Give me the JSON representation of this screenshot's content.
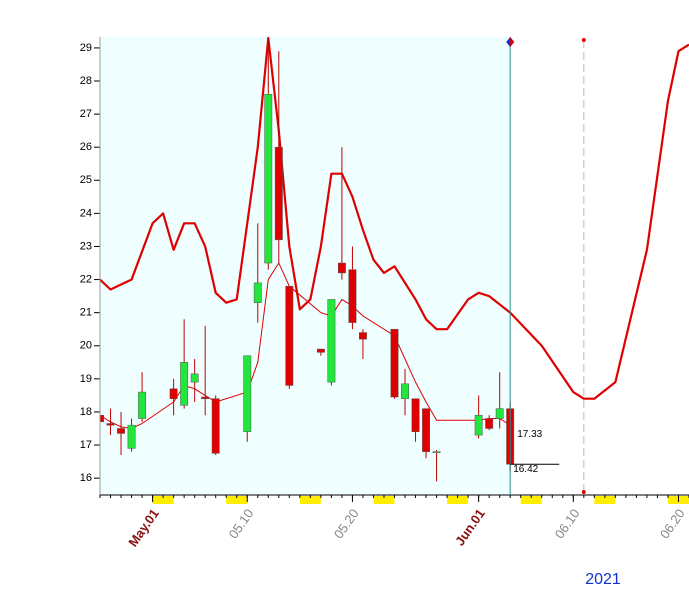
{
  "chart_data": {
    "type": "candlestick",
    "xlim": [
      "2021-04-26",
      "2021-06-21"
    ],
    "ylim": [
      15.49,
      29.33
    ],
    "yticks": [
      16,
      17,
      18,
      19,
      20,
      21,
      22,
      23,
      24,
      25,
      26,
      27,
      28,
      29
    ],
    "xticks": [
      {
        "value": "2021-05-01",
        "label": "May.01"
      },
      {
        "value": "2021-05-10",
        "label": "05.10"
      },
      {
        "value": "2021-05-20",
        "label": "05.20"
      },
      {
        "value": "2021-06-01",
        "label": "Jun.01"
      },
      {
        "value": "2021-06-10",
        "label": "06.10"
      },
      {
        "value": "2021-06-20",
        "label": "06.20"
      }
    ],
    "year_label": "2021",
    "up_color": "#22e63c",
    "down_color": "#e00000",
    "candles": {
      "x": [
        "2021-04-26",
        "2021-04-27",
        "2021-04-28",
        "2021-04-29",
        "2021-04-30",
        "2021-05-03",
        "2021-05-04",
        "2021-05-05",
        "2021-05-06",
        "2021-05-07",
        "2021-05-10",
        "2021-05-11",
        "2021-05-12",
        "2021-05-13",
        "2021-05-14",
        "2021-05-17",
        "2021-05-18",
        "2021-05-19",
        "2021-05-20",
        "2021-05-21",
        "2021-05-24",
        "2021-05-25",
        "2021-05-26",
        "2021-05-27",
        "2021-05-28",
        "2021-06-01",
        "2021-06-02",
        "2021-06-03",
        "2021-06-04"
      ],
      "open": [
        17.9,
        17.65,
        17.5,
        16.9,
        17.8,
        18.7,
        18.2,
        18.9,
        18.45,
        18.4,
        17.4,
        21.3,
        22.5,
        26.0,
        21.8,
        19.9,
        18.9,
        22.5,
        22.3,
        20.4,
        20.5,
        18.4,
        18.4,
        18.1,
        16.8,
        17.3,
        17.8,
        17.8,
        18.1
      ],
      "high": [
        18.0,
        18.1,
        18.0,
        17.8,
        19.2,
        19.0,
        20.8,
        19.6,
        20.6,
        18.5,
        19.7,
        23.7,
        29.3,
        28.9,
        21.8,
        19.9,
        21.4,
        26.0,
        23.0,
        20.5,
        20.5,
        19.3,
        18.4,
        18.1,
        16.85,
        18.5,
        17.9,
        19.2,
        18.3
      ],
      "low": [
        17.0,
        17.3,
        16.7,
        16.8,
        17.7,
        17.9,
        18.1,
        18.3,
        17.9,
        16.7,
        17.1,
        20.7,
        22.3,
        22.5,
        18.7,
        19.7,
        18.8,
        22.0,
        20.5,
        19.6,
        18.4,
        17.9,
        17.1,
        16.6,
        15.9,
        17.2,
        17.45,
        17.5,
        16.2
      ],
      "close": [
        17.7,
        17.6,
        17.35,
        17.6,
        18.6,
        18.4,
        19.5,
        19.15,
        18.4,
        16.75,
        19.7,
        21.9,
        27.6,
        23.2,
        18.8,
        19.8,
        21.4,
        22.2,
        20.7,
        20.2,
        18.45,
        18.85,
        17.4,
        16.8,
        16.8,
        17.9,
        17.5,
        18.1,
        16.42
      ]
    },
    "lines": [
      {
        "color": "#e00000",
        "width": 1,
        "x": [
          "2021-04-26",
          "2021-04-27",
          "2021-04-28",
          "2021-04-29",
          "2021-04-30",
          "2021-05-03",
          "2021-05-04",
          "2021-05-05",
          "2021-05-06",
          "2021-05-07",
          "2021-05-10",
          "2021-05-11",
          "2021-05-12",
          "2021-05-13",
          "2021-05-14",
          "2021-05-17",
          "2021-05-18",
          "2021-05-19",
          "2021-05-20",
          "2021-05-21",
          "2021-05-24",
          "2021-05-25",
          "2021-05-26",
          "2021-05-27",
          "2021-05-28",
          "2021-06-01",
          "2021-06-02",
          "2021-06-03",
          "2021-06-04"
        ],
        "values": [
          17.9,
          17.7,
          17.55,
          17.5,
          17.65,
          18.3,
          18.8,
          18.7,
          18.5,
          18.3,
          18.6,
          19.5,
          22.0,
          22.5,
          21.8,
          21.0,
          20.9,
          21.4,
          21.2,
          20.9,
          20.3,
          19.6,
          18.9,
          18.3,
          17.75,
          17.75,
          17.8,
          17.8,
          17.6
        ]
      },
      {
        "color": "#e00000",
        "width": 2.2,
        "x": [
          "2021-04-26",
          "2021-04-27",
          "2021-04-29",
          "2021-05-01",
          "2021-05-02",
          "2021-05-03",
          "2021-05-04",
          "2021-05-05",
          "2021-05-06",
          "2021-05-07",
          "2021-05-08",
          "2021-05-09",
          "2021-05-11",
          "2021-05-12",
          "2021-05-13",
          "2021-05-14",
          "2021-05-15",
          "2021-05-16",
          "2021-05-17",
          "2021-05-18",
          "2021-05-19",
          "2021-05-20",
          "2021-05-21",
          "2021-05-22",
          "2021-05-23",
          "2021-05-24",
          "2021-05-25",
          "2021-05-26",
          "2021-05-27",
          "2021-05-28",
          "2021-05-29",
          "2021-05-31",
          "2021-06-01",
          "2021-06-02",
          "2021-06-04",
          "2021-06-07",
          "2021-06-10",
          "2021-06-11",
          "2021-06-12",
          "2021-06-14",
          "2021-06-17",
          "2021-06-19",
          "2021-06-20",
          "2021-06-21"
        ],
        "values": [
          22.0,
          21.7,
          22.0,
          23.7,
          24.0,
          22.9,
          23.7,
          23.7,
          23.0,
          21.6,
          21.3,
          21.4,
          26.0,
          29.3,
          26.5,
          23.0,
          21.1,
          21.4,
          23.0,
          25.2,
          25.2,
          24.5,
          23.5,
          22.6,
          22.2,
          22.4,
          21.9,
          21.4,
          20.8,
          20.5,
          20.5,
          21.4,
          21.6,
          21.5,
          21.0,
          20.0,
          18.6,
          18.4,
          18.4,
          18.9,
          22.9,
          27.4,
          28.9,
          29.1
        ]
      }
    ],
    "annotations": [
      17.33,
      16.42
    ]
  }
}
